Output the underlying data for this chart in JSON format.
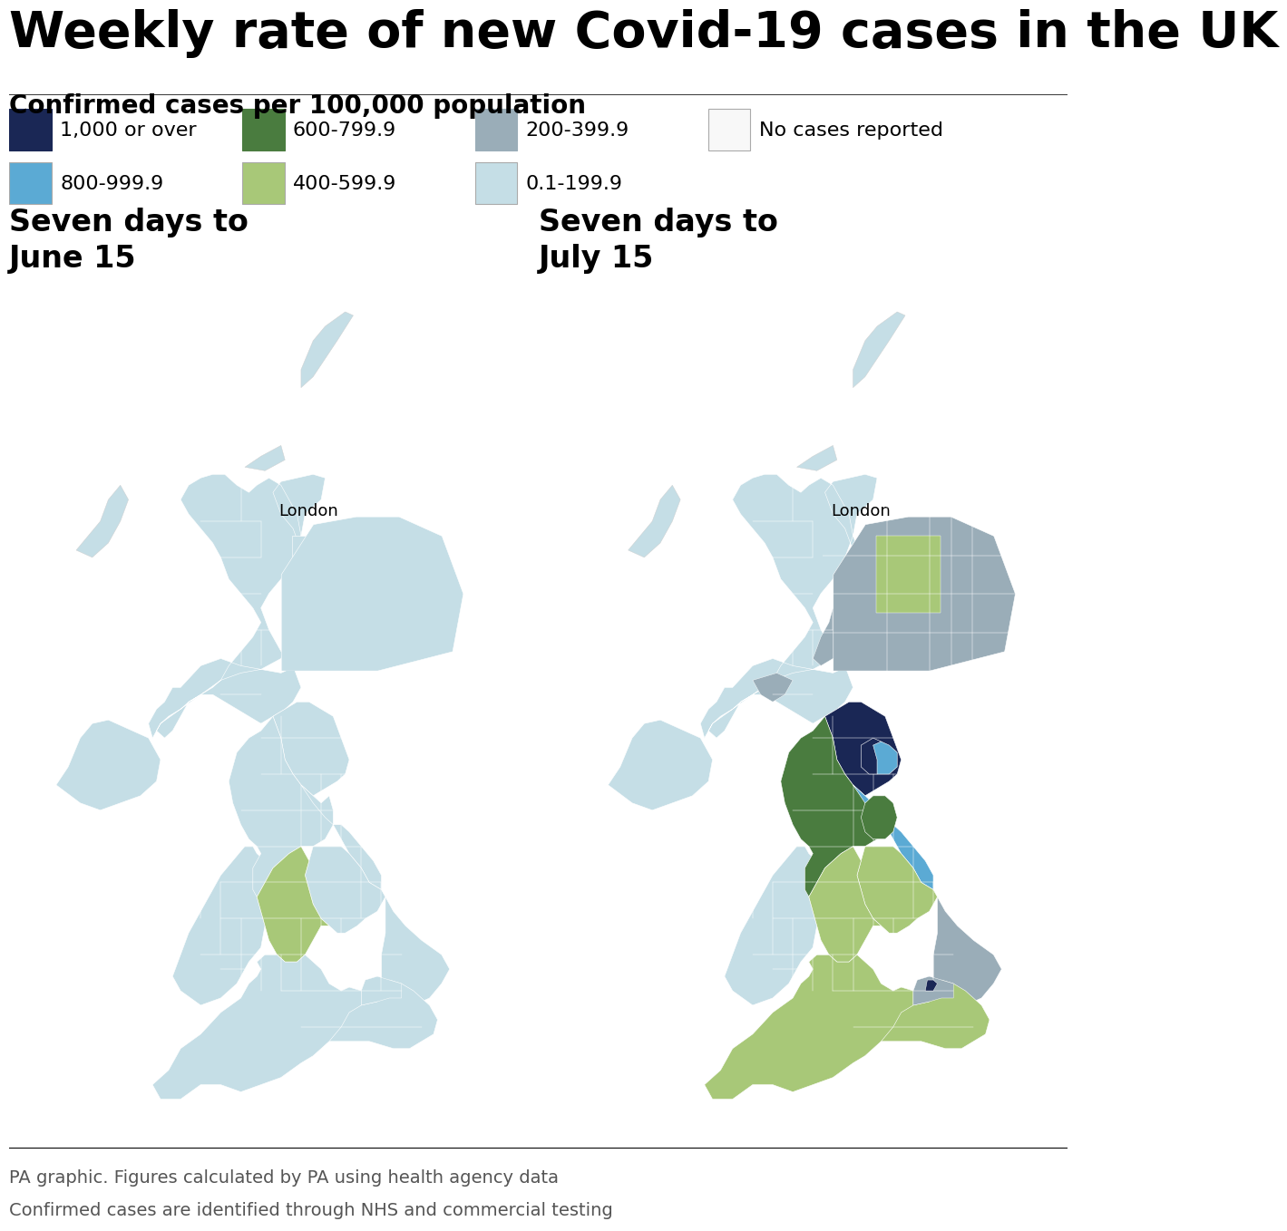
{
  "title": "Weekly rate of new Covid-19 cases in the UK",
  "subtitle": "Confirmed cases per 100,000 population",
  "footer_line1": "PA graphic. Figures calculated by PA using health agency data",
  "footer_line2": "Confirmed cases are identified through NHS and commercial testing",
  "map1_title": "Seven days to\nJune 15",
  "map2_title": "Seven days to\nJuly 15",
  "london_label": "London",
  "legend_row1": [
    {
      "label": "1,000 or over",
      "color": "#1a2755"
    },
    {
      "label": "600-799.9",
      "color": "#4a7c3f"
    },
    {
      "label": "200-399.9",
      "color": "#9aadb8"
    },
    {
      "label": "No cases reported",
      "color": "#f8f8f8"
    }
  ],
  "legend_row2": [
    {
      "label": "800-999.9",
      "color": "#5baad4"
    },
    {
      "label": "400-599.9",
      "color": "#a8c878"
    },
    {
      "label": "0.1-199.9",
      "color": "#c5dee6"
    }
  ],
  "background_color": "#ffffff",
  "title_fontsize": 40,
  "subtitle_fontsize": 20,
  "map_title_fontsize": 24,
  "legend_fontsize": 16,
  "footer_fontsize": 14,
  "color_no_data": "#f8f8f8",
  "color_0_199": "#c5dee6",
  "color_200_399": "#9aadb8",
  "color_400_599": "#a8c878",
  "color_600_799": "#4a7c3f",
  "color_800_999": "#5baad4",
  "color_1000_plus": "#1a2755",
  "border_color": "#ffffff",
  "title_separator_color": "#222222",
  "footer_text_color": "#555555"
}
